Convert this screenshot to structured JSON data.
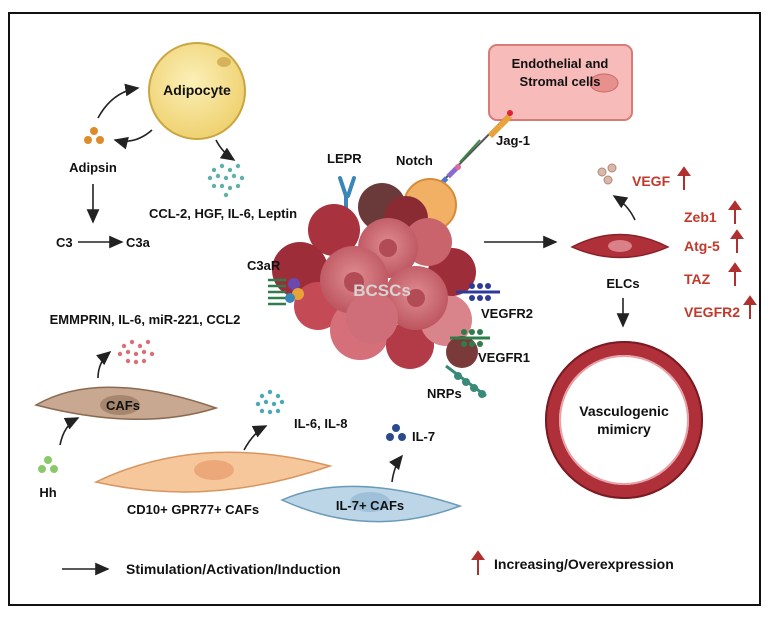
{
  "labels": {
    "adipocyte": "Adipocyte",
    "adipsin": "Adipsin",
    "c3": "C3",
    "c3a": "C3a",
    "adipo_factors": "CCL-2, HGF, IL-6, Leptin",
    "lepr": "LEPR",
    "notch": "Notch",
    "jag1": "Jag-1",
    "endothelial_line1": "Endothelial and",
    "endothelial_line2": "Stromal cells",
    "c3ar": "C3aR",
    "bcscs": "BCSCs",
    "vegfr2": "VEGFR2",
    "vegfr1": "VEGFR1",
    "nrps": "NRPs",
    "caf_factors": "EMMPRIN, IL-6, miR-221, CCL2",
    "cafs": "CAFs",
    "hh": "Hh",
    "il6_il8": "IL-6, IL-8",
    "cd10_cafs": "CD10+ GPR77+ CAFs",
    "il7": "IL-7",
    "il7_cafs": "IL-7+ CAFs",
    "elcs": "ELCs",
    "vasc_line1": "Vasculogenic",
    "vasc_line2": "mimicry"
  },
  "upregulated": {
    "vegf": "VEGF",
    "zeb1": "Zeb1",
    "atg5": "Atg-5",
    "taz": "TAZ",
    "vegfr2": "VEGFR2"
  },
  "legend": {
    "stimulation": "Stimulation/Activation/Induction",
    "increasing": "Increasing/Overexpression"
  },
  "colors": {
    "up_arrow": "#b03030",
    "bcsc_cell": "#c9646c",
    "adipocyte_fill": "#f6e08a",
    "endothelial_fill": "#f6b8b6",
    "caf_brown": "#c4a58e",
    "caf_orange": "#f6c79b",
    "caf_blue": "#b8d4e6",
    "elc_red": "#b0303a"
  }
}
